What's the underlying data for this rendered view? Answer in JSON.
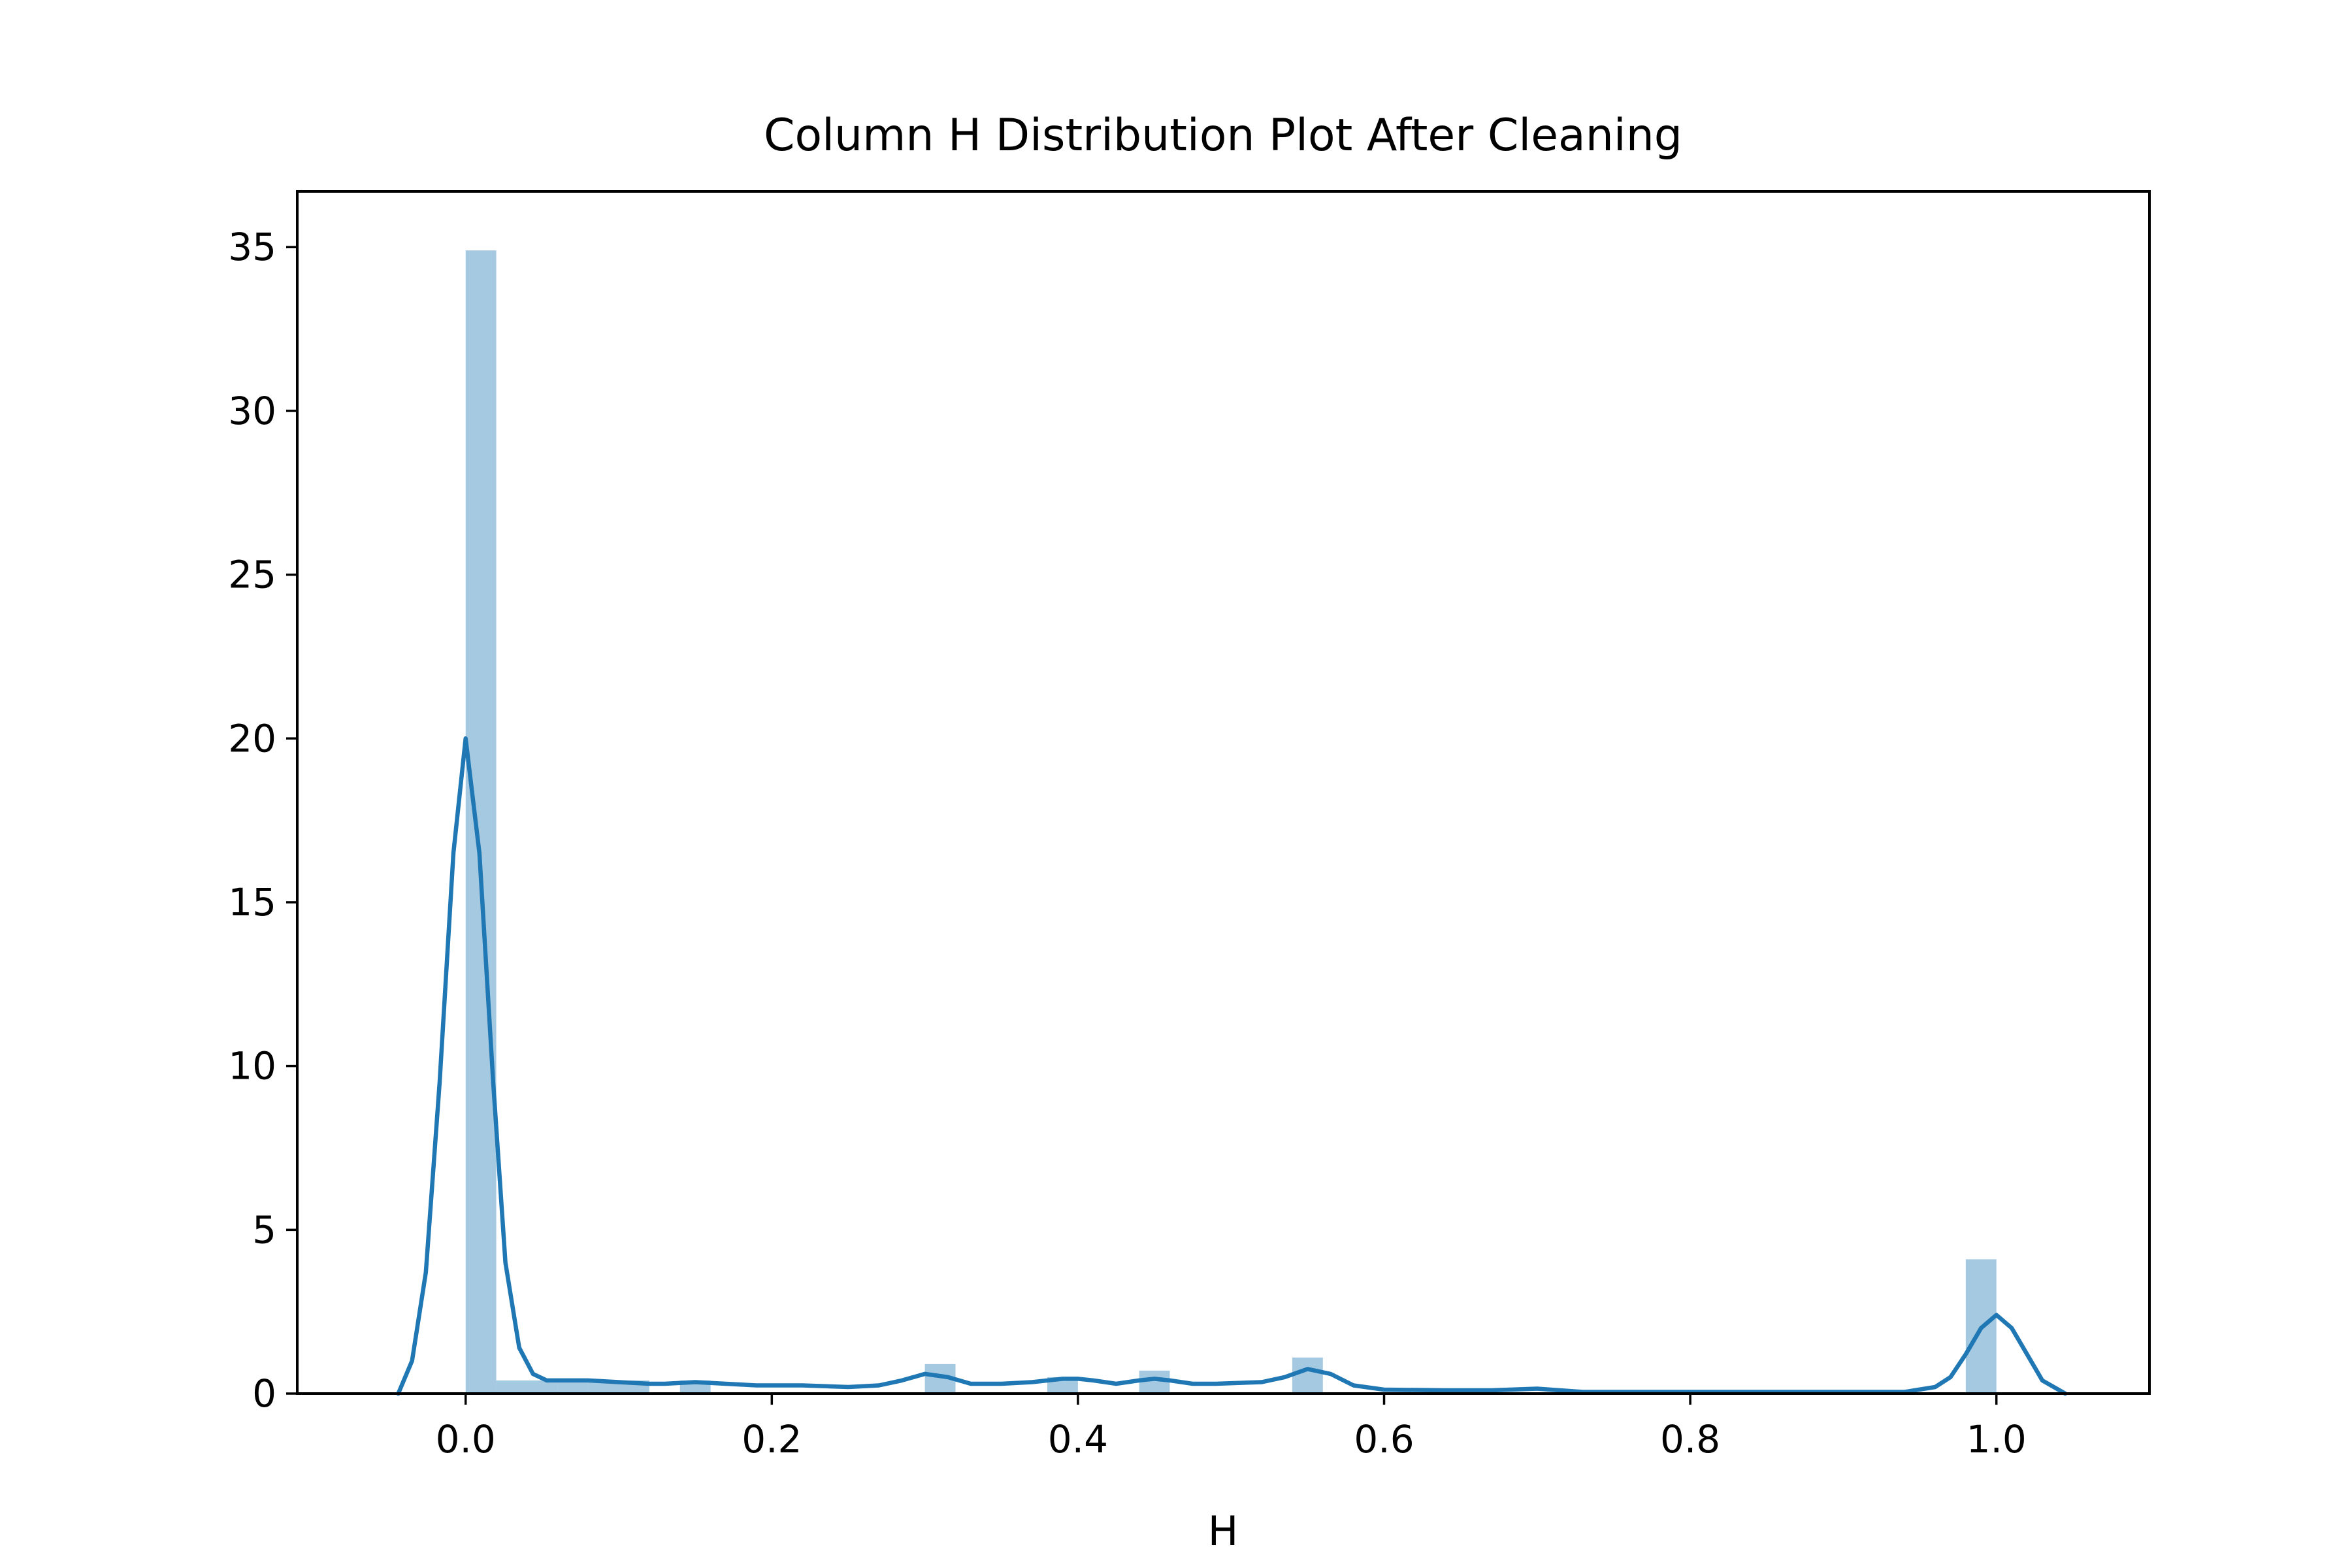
{
  "chart_data": {
    "type": "bar",
    "title": "Column H Distribution Plot After Cleaning",
    "xlabel": "H",
    "ylabel": "",
    "xlim": [
      -0.11,
      1.1
    ],
    "ylim": [
      0,
      36.7
    ],
    "xticks": [
      0.0,
      0.2,
      0.4,
      0.6,
      0.8,
      1.0
    ],
    "xtick_labels": [
      "0.0",
      "0.2",
      "0.4",
      "0.6",
      "0.8",
      "1.0"
    ],
    "yticks": [
      0,
      5,
      10,
      15,
      20,
      25,
      30,
      35
    ],
    "ytick_labels": [
      "0",
      "5",
      "10",
      "15",
      "20",
      "25",
      "30",
      "35"
    ],
    "grid": false,
    "bar_color": "#1f77b4",
    "line_color": "#1f77b4",
    "histogram": {
      "bin_width": 0.02,
      "bins": [
        {
          "x0": 0.0,
          "x1": 0.02,
          "y": 34.9
        },
        {
          "x0": 0.02,
          "x1": 0.04,
          "y": 0.4
        },
        {
          "x0": 0.04,
          "x1": 0.06,
          "y": 0.4
        },
        {
          "x0": 0.06,
          "x1": 0.08,
          "y": 0.4
        },
        {
          "x0": 0.08,
          "x1": 0.1,
          "y": 0.4
        },
        {
          "x0": 0.1,
          "x1": 0.12,
          "y": 0.4
        },
        {
          "x0": 0.14,
          "x1": 0.16,
          "y": 0.4
        },
        {
          "x0": 0.3,
          "x1": 0.32,
          "y": 0.9
        },
        {
          "x0": 0.38,
          "x1": 0.4,
          "y": 0.5
        },
        {
          "x0": 0.44,
          "x1": 0.46,
          "y": 0.7
        },
        {
          "x0": 0.54,
          "x1": 0.56,
          "y": 1.1
        },
        {
          "x0": 0.98,
          "x1": 1.0,
          "y": 4.1
        }
      ]
    },
    "kde": {
      "x": [
        -0.044,
        -0.035,
        -0.026,
        -0.017,
        -0.008,
        0.0,
        0.009,
        0.018,
        0.026,
        0.035,
        0.044,
        0.053,
        0.06,
        0.08,
        0.1,
        0.12,
        0.13,
        0.15,
        0.17,
        0.19,
        0.22,
        0.25,
        0.27,
        0.285,
        0.3,
        0.315,
        0.33,
        0.35,
        0.37,
        0.39,
        0.4,
        0.41,
        0.425,
        0.44,
        0.45,
        0.46,
        0.475,
        0.49,
        0.52,
        0.535,
        0.55,
        0.565,
        0.58,
        0.6,
        0.64,
        0.67,
        0.7,
        0.73,
        0.78,
        0.85,
        0.9,
        0.94,
        0.96,
        0.97,
        0.98,
        0.99,
        1.0,
        1.01,
        1.02,
        1.03,
        1.045
      ],
      "y": [
        0.0,
        1.0,
        3.7,
        9.5,
        16.5,
        20.0,
        16.5,
        9.5,
        4.0,
        1.4,
        0.6,
        0.4,
        0.4,
        0.4,
        0.35,
        0.3,
        0.3,
        0.35,
        0.3,
        0.25,
        0.25,
        0.2,
        0.25,
        0.4,
        0.6,
        0.5,
        0.3,
        0.3,
        0.35,
        0.45,
        0.45,
        0.4,
        0.3,
        0.4,
        0.45,
        0.4,
        0.3,
        0.3,
        0.35,
        0.5,
        0.75,
        0.6,
        0.25,
        0.12,
        0.1,
        0.1,
        0.15,
        0.05,
        0.05,
        0.05,
        0.05,
        0.05,
        0.2,
        0.5,
        1.2,
        2.0,
        2.4,
        2.0,
        1.2,
        0.4,
        0.0
      ]
    }
  }
}
